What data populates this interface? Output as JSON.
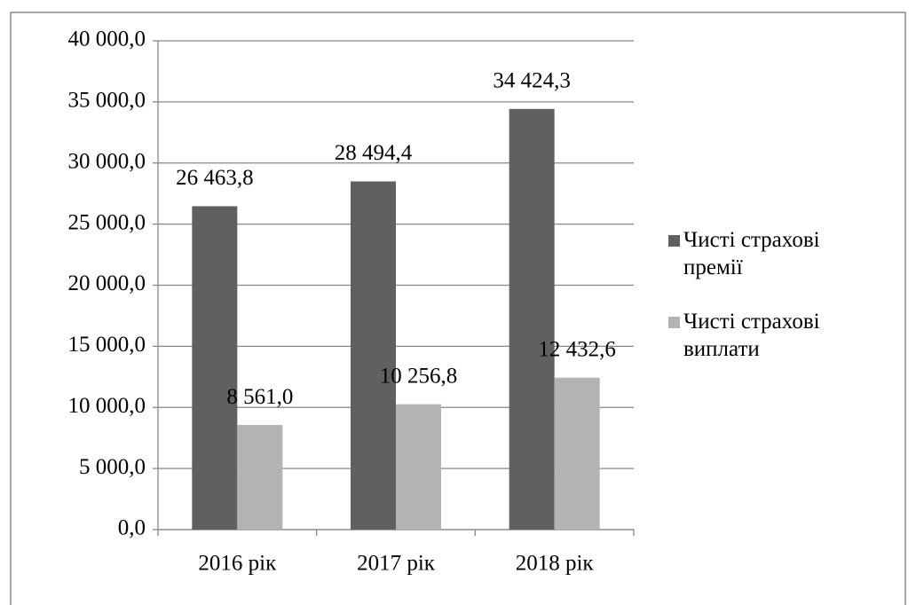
{
  "chart_data": {
    "type": "bar",
    "categories": [
      "2016 рік",
      "2017 рік",
      "2018 рік"
    ],
    "series": [
      {
        "name": "Чисті страхові премії",
        "color": "#606060",
        "values": [
          26463.8,
          28494.4,
          34424.3
        ],
        "value_labels": [
          "26 463,8",
          "28 494,4",
          "34 424,3"
        ]
      },
      {
        "name": "Чисті страхові виплати",
        "color": "#b3b3b3",
        "values": [
          8561.0,
          10256.8,
          12432.6
        ],
        "value_labels": [
          "8 561,0",
          "10 256,8",
          "12 432,6"
        ]
      }
    ],
    "ylim": [
      0,
      40000
    ],
    "yticks": [
      {
        "value": 0,
        "label": "0,0"
      },
      {
        "value": 5000,
        "label": "5 000,0"
      },
      {
        "value": 10000,
        "label": "10 000,0"
      },
      {
        "value": 15000,
        "label": "15 000,0"
      },
      {
        "value": 20000,
        "label": "20 000,0"
      },
      {
        "value": 25000,
        "label": "25 000,0"
      },
      {
        "value": 30000,
        "label": "30 000,0"
      },
      {
        "value": 35000,
        "label": "35 000,0"
      },
      {
        "value": 40000,
        "label": "40 000,0"
      }
    ],
    "grid": true,
    "legend": "right"
  }
}
